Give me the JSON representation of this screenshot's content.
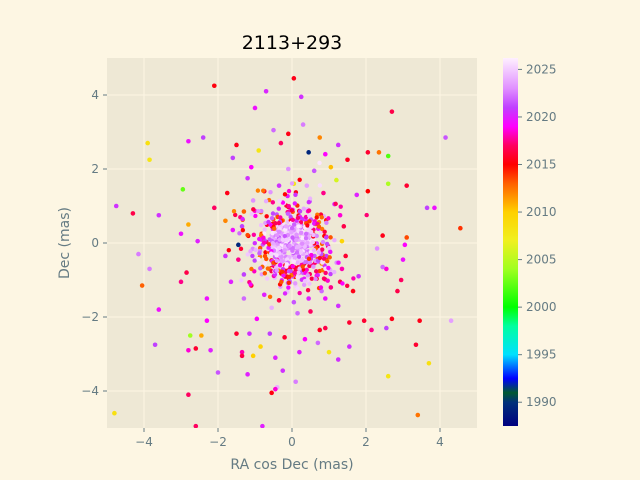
{
  "chart_data": {
    "type": "scatter",
    "title": "2113+293",
    "xlabel": "RA cos Dec (mas)",
    "ylabel": "Dec (mas)",
    "xlim": [
      -5,
      5
    ],
    "ylim": [
      -5,
      5
    ],
    "xticks": [
      -4,
      -2,
      0,
      2,
      4
    ],
    "yticks": [
      -4,
      -2,
      0,
      2,
      4
    ],
    "grid": true,
    "plot_background": "#eee8d5",
    "figure_background": "#fdf6e3",
    "grid_color": "#fdf6e3",
    "colorbar": {
      "label": "",
      "range": [
        1987.5,
        2026.2
      ],
      "ticks": [
        1990,
        1995,
        2000,
        2005,
        2010,
        2015,
        2020,
        2025
      ],
      "colormap": "gist_ncar-like",
      "stops": [
        {
          "year": 1987.5,
          "color": "#000080"
        },
        {
          "year": 1990,
          "color": "#00307a"
        },
        {
          "year": 1991,
          "color": "#005a30"
        },
        {
          "year": 1992.5,
          "color": "#0000ff"
        },
        {
          "year": 1995,
          "color": "#00e0ff"
        },
        {
          "year": 1998,
          "color": "#00ffa0"
        },
        {
          "year": 2000,
          "color": "#00ff00"
        },
        {
          "year": 2004,
          "color": "#a0ff20"
        },
        {
          "year": 2007,
          "color": "#f0f020"
        },
        {
          "year": 2010,
          "color": "#ffd000"
        },
        {
          "year": 2013,
          "color": "#ff6000"
        },
        {
          "year": 2015,
          "color": "#ff0000"
        },
        {
          "year": 2017,
          "color": "#ff0060"
        },
        {
          "year": 2019,
          "color": "#ff00ff"
        },
        {
          "year": 2021,
          "color": "#c040ff"
        },
        {
          "year": 2023,
          "color": "#e090ff"
        },
        {
          "year": 2026.2,
          "color": "#fff0ff"
        }
      ]
    },
    "series": [
      {
        "points": [
          {
            "x": 0.05,
            "y": 4.45,
            "t": 2015.5
          },
          {
            "x": -2.1,
            "y": 4.25,
            "t": 2015.3
          },
          {
            "x": -0.7,
            "y": 4.1,
            "t": 2020.2
          },
          {
            "x": 0.25,
            "y": 3.95,
            "t": 2020.5
          },
          {
            "x": 2.7,
            "y": 3.55,
            "t": 2016.5
          },
          {
            "x": 4.15,
            "y": 2.85,
            "t": 2021.5
          },
          {
            "x": -2.8,
            "y": 2.75,
            "t": 2019.5
          },
          {
            "x": -3.9,
            "y": 2.7,
            "t": 2008.5
          },
          {
            "x": -3.85,
            "y": 2.25,
            "t": 2008.0
          },
          {
            "x": -2.4,
            "y": 2.85,
            "t": 2021.0
          },
          {
            "x": -1.5,
            "y": 2.65,
            "t": 2015.5
          },
          {
            "x": 0.45,
            "y": 2.45,
            "t": 1989.5
          },
          {
            "x": 0.75,
            "y": 2.85,
            "t": 2012.0
          },
          {
            "x": 2.05,
            "y": 2.45,
            "t": 2016.0
          },
          {
            "x": 2.35,
            "y": 2.45,
            "t": 2012.5
          },
          {
            "x": 2.6,
            "y": 2.35,
            "t": 2002.0
          },
          {
            "x": 1.5,
            "y": 2.25,
            "t": 2015.7
          },
          {
            "x": 3.1,
            "y": 1.55,
            "t": 2016.0
          },
          {
            "x": 2.6,
            "y": 1.6,
            "t": 2004.5
          },
          {
            "x": -2.95,
            "y": 1.45,
            "t": 2002.5
          },
          {
            "x": -4.75,
            "y": 1.0,
            "t": 2020.5
          },
          {
            "x": -3.6,
            "y": 0.75,
            "t": 2020.5
          },
          {
            "x": -4.3,
            "y": 0.8,
            "t": 2016.5
          },
          {
            "x": -2.8,
            "y": 0.5,
            "t": 2011.0
          },
          {
            "x": -3.0,
            "y": 0.25,
            "t": 2019.5
          },
          {
            "x": -2.1,
            "y": 0.95,
            "t": 2017.0
          },
          {
            "x": 3.65,
            "y": 0.95,
            "t": 2021.0
          },
          {
            "x": 3.85,
            "y": 0.95,
            "t": 2019.5
          },
          {
            "x": 4.55,
            "y": 0.4,
            "t": 2014.0
          },
          {
            "x": 3.1,
            "y": 0.15,
            "t": 2013.5
          },
          {
            "x": 3.05,
            "y": -0.05,
            "t": 2019.0
          },
          {
            "x": -4.15,
            "y": -0.3,
            "t": 2022.5
          },
          {
            "x": -3.85,
            "y": -0.7,
            "t": 2022.5
          },
          {
            "x": -4.05,
            "y": -1.15,
            "t": 2013.0
          },
          {
            "x": -2.85,
            "y": -0.8,
            "t": 2016.5
          },
          {
            "x": -3.0,
            "y": -1.05,
            "t": 2017.5
          },
          {
            "x": 2.55,
            "y": -0.7,
            "t": 2018.5
          },
          {
            "x": 2.45,
            "y": -0.65,
            "t": 2022.0
          },
          {
            "x": 3.0,
            "y": -0.45,
            "t": 2019.5
          },
          {
            "x": 2.95,
            "y": -1.0,
            "t": 2017.0
          },
          {
            "x": 2.85,
            "y": -1.3,
            "t": 2016.5
          },
          {
            "x": -2.3,
            "y": -1.5,
            "t": 2019.5
          },
          {
            "x": -3.6,
            "y": -1.8,
            "t": 2019.5
          },
          {
            "x": -2.3,
            "y": -2.1,
            "t": 2019.0
          },
          {
            "x": -2.75,
            "y": -2.5,
            "t": 2004.0
          },
          {
            "x": -2.45,
            "y": -2.5,
            "t": 2011.0
          },
          {
            "x": -3.7,
            "y": -2.75,
            "t": 2021.0
          },
          {
            "x": -2.8,
            "y": -2.9,
            "t": 2018.5
          },
          {
            "x": -2.2,
            "y": -2.9,
            "t": 2020.0
          },
          {
            "x": -2.6,
            "y": -2.85,
            "t": 2016.0
          },
          {
            "x": -1.35,
            "y": -2.95,
            "t": 2018.0
          },
          {
            "x": -1.35,
            "y": -3.05,
            "t": 2016.5
          },
          {
            "x": -1.2,
            "y": -3.55,
            "t": 2020.0
          },
          {
            "x": -1.05,
            "y": -3.05,
            "t": 2010.0
          },
          {
            "x": -0.45,
            "y": -3.1,
            "t": 2020.0
          },
          {
            "x": -0.25,
            "y": -3.45,
            "t": 2020.5
          },
          {
            "x": -0.4,
            "y": -3.9,
            "t": 2024.0
          },
          {
            "x": -0.45,
            "y": -3.95,
            "t": 2018.5
          },
          {
            "x": -0.55,
            "y": -4.05,
            "t": 2015.3
          },
          {
            "x": 0.1,
            "y": -3.75,
            "t": 2022.5
          },
          {
            "x": 1.0,
            "y": -2.95,
            "t": 2008.0
          },
          {
            "x": 1.25,
            "y": -3.15,
            "t": 2020.5
          },
          {
            "x": 1.55,
            "y": -2.8,
            "t": 2020.5
          },
          {
            "x": 1.95,
            "y": -2.1,
            "t": 2016.0
          },
          {
            "x": 2.15,
            "y": -2.35,
            "t": 2017.5
          },
          {
            "x": 2.55,
            "y": -2.3,
            "t": 2021.0
          },
          {
            "x": 2.7,
            "y": -2.05,
            "t": 2015.5
          },
          {
            "x": 3.45,
            "y": -2.1,
            "t": 2015.5
          },
          {
            "x": 3.35,
            "y": -2.75,
            "t": 2016.0
          },
          {
            "x": 3.7,
            "y": -3.25,
            "t": 2008.5
          },
          {
            "x": 4.3,
            "y": -2.1,
            "t": 2023.5
          },
          {
            "x": 2.6,
            "y": -3.6,
            "t": 2008.0
          },
          {
            "x": 3.4,
            "y": -4.65,
            "t": 2012.5
          },
          {
            "x": -2.8,
            "y": -4.1,
            "t": 2017.0
          },
          {
            "x": -2.0,
            "y": -3.5,
            "t": 2021.5
          },
          {
            "x": -4.8,
            "y": -4.6,
            "t": 2008.5
          },
          {
            "x": -0.8,
            "y": -4.95,
            "t": 2020.0
          },
          {
            "x": -2.6,
            "y": -4.95,
            "t": 2017.0
          },
          {
            "x": -1.5,
            "y": -2.45,
            "t": 2016.0
          },
          {
            "x": -1.15,
            "y": -2.45,
            "t": 2020.5
          },
          {
            "x": -1.6,
            "y": 2.3,
            "t": 2021.0
          },
          {
            "x": -1.0,
            "y": 3.65,
            "t": 2019.5
          },
          {
            "x": -0.5,
            "y": 3.05,
            "t": 2022.0
          },
          {
            "x": 1.25,
            "y": 2.65,
            "t": 2020.5
          },
          {
            "x": 1.05,
            "y": 2.05,
            "t": 2010.5
          },
          {
            "x": -1.1,
            "y": 2.05,
            "t": 2019.0
          },
          {
            "x": -0.1,
            "y": 2.0,
            "t": 2023.0
          },
          {
            "x": 0.6,
            "y": 1.95,
            "t": 2021.5
          },
          {
            "x": -1.75,
            "y": 1.35,
            "t": 2015.5
          },
          {
            "x": 1.75,
            "y": 1.3,
            "t": 2020.0
          },
          {
            "x": 2.05,
            "y": 1.4,
            "t": 2015.0
          },
          {
            "x": -1.8,
            "y": 0.6,
            "t": 2012.0
          },
          {
            "x": -1.6,
            "y": 0.35,
            "t": 2019.5
          },
          {
            "x": -1.45,
            "y": -0.05,
            "t": 1989.5
          },
          {
            "x": -1.8,
            "y": -0.35,
            "t": 2020.5
          },
          {
            "x": -1.65,
            "y": -1.05,
            "t": 2020.0
          },
          {
            "x": -1.3,
            "y": -1.5,
            "t": 2022.0
          },
          {
            "x": 1.65,
            "y": -1.3,
            "t": 2015.5
          },
          {
            "x": 1.8,
            "y": -0.9,
            "t": 2020.5
          },
          {
            "x": 1.55,
            "y": -2.15,
            "t": 2016.0
          },
          {
            "x": 1.25,
            "y": -1.7,
            "t": 2020.5
          },
          {
            "x": 0.9,
            "y": -2.3,
            "t": 2016.5
          },
          {
            "x": 0.75,
            "y": -2.35,
            "t": 2015.8
          },
          {
            "x": 0.35,
            "y": -2.6,
            "t": 2019.0
          },
          {
            "x": -0.2,
            "y": -2.55,
            "t": 2016.0
          },
          {
            "x": -0.6,
            "y": -2.45,
            "t": 2021.0
          },
          {
            "x": -0.95,
            "y": -2.05,
            "t": 2019.0
          },
          {
            "x": -0.55,
            "y": -1.75,
            "t": 2024.0
          },
          {
            "x": 0.15,
            "y": -1.9,
            "t": 2022.0
          },
          {
            "x": 0.5,
            "y": -1.85,
            "t": 2017.0
          },
          {
            "x": 0.9,
            "y": -1.5,
            "t": 2019.5
          },
          {
            "x": 1.05,
            "y": -1.2,
            "t": 2017.5
          },
          {
            "x": 1.3,
            "y": -1.05,
            "t": 2016.5
          },
          {
            "x": 1.35,
            "y": -0.7,
            "t": 2018.0
          },
          {
            "x": 1.45,
            "y": -0.35,
            "t": 2016.0
          },
          {
            "x": 1.35,
            "y": 0.05,
            "t": 2009.5
          },
          {
            "x": 1.4,
            "y": 0.45,
            "t": 2016.5
          },
          {
            "x": 1.3,
            "y": 0.75,
            "t": 2018.5
          },
          {
            "x": 1.15,
            "y": 1.05,
            "t": 2020.0
          },
          {
            "x": 0.85,
            "y": 1.35,
            "t": 2017.5
          },
          {
            "x": 0.4,
            "y": 1.55,
            "t": 2023.5
          },
          {
            "x": 0.05,
            "y": 1.6,
            "t": 2008.0
          },
          {
            "x": -0.35,
            "y": 1.55,
            "t": 2020.5
          },
          {
            "x": -0.75,
            "y": 1.4,
            "t": 2016.0
          },
          {
            "x": -1.05,
            "y": 1.15,
            "t": 2023.0
          },
          {
            "x": -1.3,
            "y": 0.85,
            "t": 2013.0
          },
          {
            "x": -1.35,
            "y": 0.45,
            "t": 2021.0
          },
          {
            "x": -1.45,
            "y": -0.45,
            "t": 2017.5
          },
          {
            "x": -1.3,
            "y": -0.85,
            "t": 2021.0
          },
          {
            "x": -1.1,
            "y": -1.15,
            "t": 2016.0
          },
          {
            "x": -0.75,
            "y": -1.4,
            "t": 2020.0
          },
          {
            "x": -0.35,
            "y": -1.55,
            "t": 2016.5
          },
          {
            "x": 0.05,
            "y": -1.6,
            "t": 2021.5
          },
          {
            "x": 0.45,
            "y": -1.5,
            "t": 2020.0
          },
          {
            "x": 0.8,
            "y": -1.3,
            "t": 2022.0
          },
          {
            "x": -0.1,
            "y": 2.95,
            "t": 2015.5
          },
          {
            "x": 0.3,
            "y": 3.2,
            "t": 2022.5
          },
          {
            "x": -0.3,
            "y": 2.7,
            "t": 2017.0
          },
          {
            "x": 0.9,
            "y": 2.4,
            "t": 2019.0
          },
          {
            "x": -0.9,
            "y": 2.5,
            "t": 2008.0
          },
          {
            "x": 1.2,
            "y": 1.7,
            "t": 2006.0
          },
          {
            "x": -1.2,
            "y": 1.75,
            "t": 2020.5
          },
          {
            "x": 0.2,
            "y": -2.95,
            "t": 2020.0
          },
          {
            "x": -0.85,
            "y": -2.8,
            "t": 2009.5
          },
          {
            "x": 0.7,
            "y": -2.7,
            "t": 2022.0
          },
          {
            "x": -2.55,
            "y": 0.05,
            "t": 2020.0
          },
          {
            "x": 2.45,
            "y": 0.2,
            "t": 2015.5
          },
          {
            "x": 2.3,
            "y": -0.15,
            "t": 2023.0
          }
        ]
      }
    ]
  }
}
